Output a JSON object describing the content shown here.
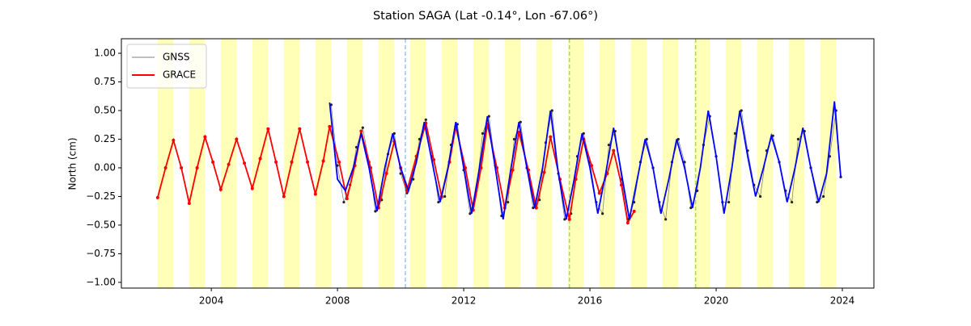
{
  "chart_data": {
    "type": "line",
    "title": "Station SAGA (Lat -0.14°, Lon -67.06°)",
    "ylabel": "North (cm)",
    "xlim": [
      2001.15,
      2025.0
    ],
    "xticks": [
      2004,
      2008,
      2012,
      2016,
      2020,
      2024
    ],
    "ylim": [
      -1.05,
      1.127
    ],
    "yticks": [
      {
        "value": -1.0,
        "label": "−1.00"
      },
      {
        "value": -0.75,
        "label": "−0.75"
      },
      {
        "value": -0.5,
        "label": "−0.50"
      },
      {
        "value": -0.25,
        "label": "−0.25"
      },
      {
        "value": 0,
        "label": "0.00"
      },
      {
        "value": 0.25,
        "label": "0.25"
      },
      {
        "value": 0.5,
        "label": "0.50"
      },
      {
        "value": 0.75,
        "label": "0.75"
      },
      {
        "value": 1.0,
        "label": "1.00"
      }
    ],
    "legend": "upper left",
    "band_color": "#ffffaa",
    "bands": [
      [
        2002.3,
        2002.8
      ],
      [
        2003.3,
        2003.8
      ],
      [
        2004.3,
        2004.8
      ],
      [
        2005.3,
        2005.8
      ],
      [
        2006.3,
        2006.8
      ],
      [
        2007.3,
        2007.8
      ],
      [
        2008.3,
        2008.8
      ],
      [
        2009.3,
        2009.8
      ],
      [
        2010.3,
        2010.8
      ],
      [
        2011.3,
        2011.8
      ],
      [
        2012.3,
        2012.8
      ],
      [
        2013.3,
        2013.8
      ],
      [
        2014.3,
        2014.8
      ],
      [
        2015.3,
        2015.8
      ],
      [
        2016.3,
        2016.8
      ],
      [
        2017.3,
        2017.8
      ],
      [
        2018.3,
        2018.8
      ],
      [
        2019.3,
        2019.8
      ],
      [
        2020.3,
        2020.8
      ],
      [
        2021.3,
        2021.8
      ],
      [
        2022.3,
        2022.8
      ],
      [
        2023.3,
        2023.8
      ]
    ],
    "vlines": [
      {
        "x": 2010.15,
        "color": "#9ecae1"
      },
      {
        "x": 2015.35,
        "color": "#a6d96a"
      },
      {
        "x": 2019.35,
        "color": "#a6d96a"
      }
    ],
    "series": [
      {
        "name": "GNSS",
        "color": "#555555",
        "markers": true,
        "x": [
          2007.8,
          2008.0,
          2008.2,
          2008.4,
          2008.6,
          2008.8,
          2009.0,
          2009.2,
          2009.4,
          2009.6,
          2009.8,
          2010.0,
          2010.2,
          2010.4,
          2010.6,
          2010.8,
          2011.0,
          2011.2,
          2011.4,
          2011.6,
          2011.8,
          2012.0,
          2012.2,
          2012.4,
          2012.6,
          2012.8,
          2013.0,
          2013.2,
          2013.4,
          2013.6,
          2013.8,
          2014.0,
          2014.2,
          2014.4,
          2014.6,
          2014.8,
          2015.0,
          2015.2,
          2015.4,
          2015.6,
          2015.8,
          2016.0,
          2016.2,
          2016.4,
          2016.6,
          2016.8,
          2017.0,
          2017.2,
          2017.4,
          2017.6,
          2017.8,
          2018.0,
          2018.2,
          2018.4,
          2018.6,
          2018.8,
          2019.0,
          2019.2,
          2019.4,
          2019.6,
          2019.8,
          2020.0,
          2020.2,
          2020.4,
          2020.6,
          2020.8,
          2021.0,
          2021.2,
          2021.4,
          2021.6,
          2021.8,
          2022.0,
          2022.2,
          2022.4,
          2022.6,
          2022.8,
          2023.0,
          2023.2,
          2023.4,
          2023.6,
          2023.8,
          2023.95
        ],
        "values": [
          0.55,
          0.02,
          -0.3,
          -0.15,
          0.18,
          0.35,
          0.05,
          -0.38,
          -0.28,
          0.12,
          0.3,
          -0.05,
          -0.22,
          -0.1,
          0.25,
          0.42,
          0.1,
          -0.3,
          -0.25,
          0.2,
          0.38,
          -0.02,
          -0.4,
          -0.2,
          0.3,
          0.45,
          0.02,
          -0.42,
          -0.3,
          0.25,
          0.4,
          0.0,
          -0.35,
          -0.28,
          0.22,
          0.5,
          -0.05,
          -0.45,
          -0.4,
          0.1,
          0.3,
          0.05,
          -0.3,
          -0.4,
          0.2,
          0.32,
          -0.1,
          -0.45,
          -0.3,
          0.05,
          0.25,
          0.0,
          -0.3,
          -0.45,
          0.05,
          0.25,
          0.05,
          -0.35,
          -0.2,
          0.2,
          0.45,
          0.1,
          -0.3,
          -0.3,
          0.3,
          0.5,
          0.15,
          -0.15,
          -0.25,
          0.15,
          0.28,
          0.05,
          -0.2,
          -0.3,
          0.25,
          0.32,
          0.0,
          -0.3,
          -0.25,
          0.1,
          0.5,
          -0.08
        ]
      },
      {
        "name": "GRACE",
        "color": "#ff0000",
        "markers": true,
        "x": [
          2002.3,
          2002.55,
          2002.8,
          2003.05,
          2003.3,
          2003.55,
          2003.8,
          2004.05,
          2004.3,
          2004.55,
          2004.8,
          2005.05,
          2005.3,
          2005.55,
          2005.8,
          2006.05,
          2006.3,
          2006.55,
          2006.8,
          2007.05,
          2007.3,
          2007.55,
          2007.75,
          2008.05,
          2008.3,
          2008.55,
          2008.75,
          2009.05,
          2009.3,
          2009.55,
          2009.8,
          2010.0,
          2010.2,
          2010.5,
          2010.8,
          2011.05,
          2011.3,
          2011.55,
          2011.75,
          2012.05,
          2012.3,
          2012.55,
          2012.75,
          2013.05,
          2013.3,
          2013.55,
          2013.75,
          2014.05,
          2014.3,
          2014.55,
          2014.75,
          2015.05,
          2015.35,
          2015.55,
          2015.8,
          2016.05,
          2016.3,
          2016.55,
          2016.75,
          2017.0,
          2017.2,
          2017.4
        ],
        "values": [
          -0.26,
          0.0,
          0.24,
          0.0,
          -0.31,
          0.0,
          0.27,
          0.05,
          -0.19,
          0.03,
          0.25,
          0.04,
          -0.18,
          0.08,
          0.34,
          0.05,
          -0.25,
          0.05,
          0.34,
          0.05,
          -0.23,
          0.06,
          0.36,
          0.05,
          -0.27,
          0.02,
          0.32,
          0.0,
          -0.35,
          -0.05,
          0.23,
          0.0,
          -0.2,
          0.1,
          0.39,
          0.07,
          -0.25,
          0.05,
          0.36,
          0.0,
          -0.37,
          0.0,
          0.38,
          0.0,
          -0.35,
          -0.02,
          0.31,
          -0.02,
          -0.35,
          -0.04,
          0.27,
          -0.1,
          -0.45,
          -0.1,
          0.25,
          0.02,
          -0.22,
          -0.05,
          0.15,
          -0.15,
          -0.48,
          -0.38
        ]
      },
      {
        "color": "#0000ff",
        "markers": false,
        "x": [
          2007.75,
          2008.0,
          2008.25,
          2008.5,
          2008.75,
          2009.0,
          2009.25,
          2009.5,
          2009.75,
          2010.0,
          2010.25,
          2010.5,
          2010.75,
          2011.0,
          2011.25,
          2011.5,
          2011.75,
          2012.0,
          2012.25,
          2012.5,
          2012.75,
          2013.0,
          2013.25,
          2013.5,
          2013.75,
          2014.0,
          2014.25,
          2014.5,
          2014.75,
          2015.0,
          2015.25,
          2015.5,
          2015.75,
          2016.0,
          2016.25,
          2016.5,
          2016.75,
          2017.0,
          2017.25,
          2017.5,
          2017.75,
          2018.0,
          2018.25,
          2018.5,
          2018.75,
          2019.0,
          2019.25,
          2019.5,
          2019.75,
          2020.0,
          2020.25,
          2020.5,
          2020.75,
          2021.0,
          2021.25,
          2021.5,
          2021.75,
          2022.0,
          2022.25,
          2022.5,
          2022.75,
          2023.0,
          2023.25,
          2023.5,
          2023.75,
          2023.95
        ],
        "values": [
          0.57,
          -0.1,
          -0.2,
          0.0,
          0.3,
          0.0,
          -0.38,
          0.0,
          0.3,
          0.0,
          -0.2,
          0.05,
          0.4,
          0.05,
          -0.3,
          0.0,
          0.4,
          0.0,
          -0.4,
          0.0,
          0.45,
          0.0,
          -0.45,
          0.0,
          0.4,
          0.0,
          -0.35,
          0.0,
          0.5,
          -0.05,
          -0.45,
          -0.1,
          0.3,
          0.0,
          -0.4,
          -0.05,
          0.35,
          -0.05,
          -0.45,
          -0.1,
          0.25,
          0.0,
          -0.4,
          -0.1,
          0.25,
          0.0,
          -0.35,
          0.0,
          0.5,
          0.1,
          -0.4,
          0.0,
          0.5,
          0.1,
          -0.25,
          0.0,
          0.28,
          0.05,
          -0.3,
          0.0,
          0.35,
          0.0,
          -0.3,
          -0.05,
          0.58,
          -0.08
        ]
      }
    ]
  }
}
